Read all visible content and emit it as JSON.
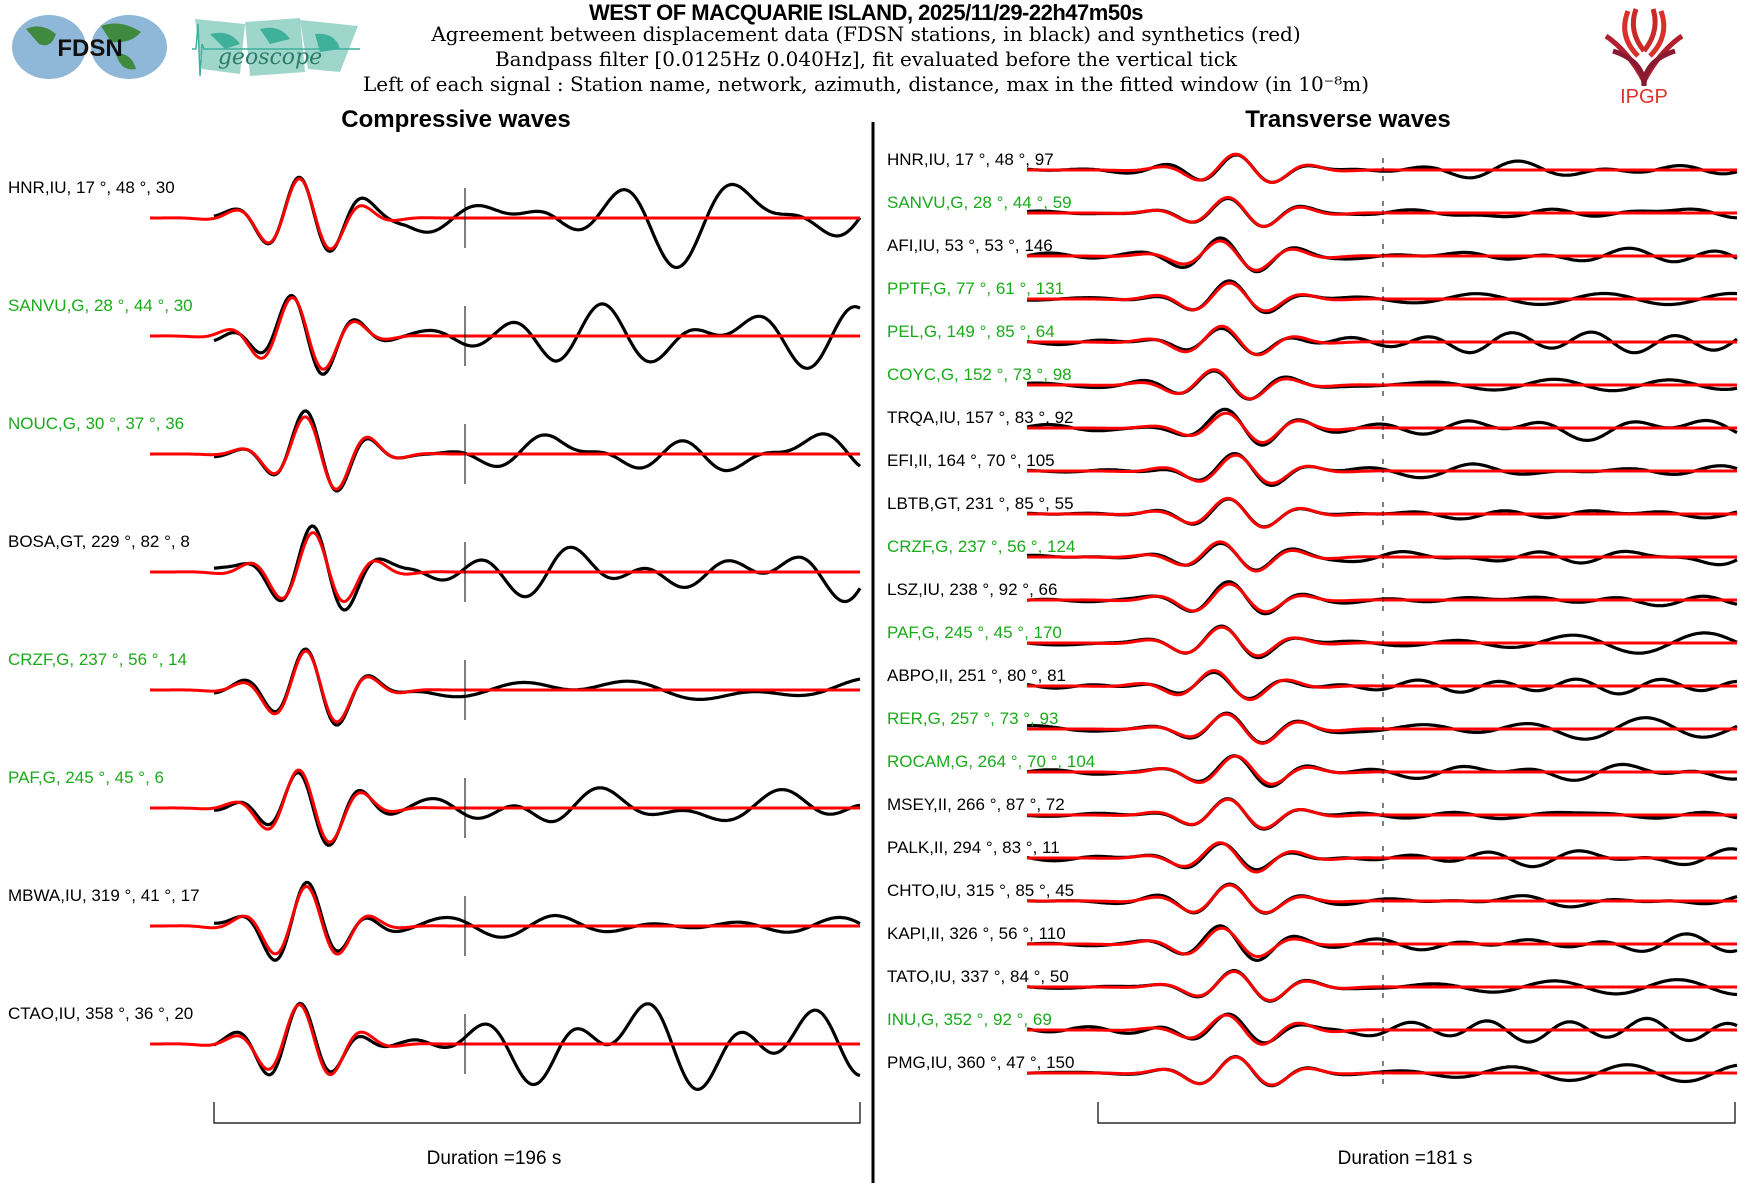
{
  "header": {
    "title": "WEST OF MACQUARIE ISLAND, 2025/11/29-22h47m50s",
    "line1": "Agreement between displacement data (FDSN stations, in black) and synthetics (red)",
    "line2": "Bandpass filter [0.0125Hz 0.040Hz], fit evaluated before the vertical tick",
    "line3": "Left of each signal : Station name, network, azimuth, distance, max in the fitted window (in 10⁻⁸m)",
    "logos": {
      "fdsn": "FDSN",
      "geoscope": "geoscope",
      "ipgp": "IPGP"
    }
  },
  "colors": {
    "data": "#000000",
    "synthetic": "#ff0000",
    "geoscope_label": "#1aaa1a",
    "other_label": "#000000"
  },
  "chart_data": [
    {
      "type": "line",
      "title": "Compressive waves",
      "duration_label": "Duration =196 s",
      "duration_s": 196,
      "series_legend": [
        "data (black)",
        "synthetics (red)"
      ],
      "stations": [
        {
          "label": "HNR,IU, 17 °, 48 °, 30",
          "geoscope": false
        },
        {
          "label": "SANVU,G, 28 °, 44 °, 30",
          "geoscope": true
        },
        {
          "label": "NOUC,G, 30 °, 37 °, 36",
          "geoscope": true
        },
        {
          "label": "BOSA,GT, 229 °, 82 °, 8",
          "geoscope": false
        },
        {
          "label": "CRZF,G, 237 °, 56 °, 14",
          "geoscope": true
        },
        {
          "label": "PAF,G, 245 °, 45 °, 6",
          "geoscope": true
        },
        {
          "label": "MBWA,IU, 319 °, 41 °, 17",
          "geoscope": false
        },
        {
          "label": "CTAO,IU, 358 °, 36 °, 20",
          "geoscope": false
        }
      ]
    },
    {
      "type": "line",
      "title": "Transverse waves",
      "duration_label": "Duration =181 s",
      "duration_s": 181,
      "series_legend": [
        "data (black)",
        "synthetics (red)"
      ],
      "stations": [
        {
          "label": "HNR,IU, 17 °, 48 °, 97",
          "geoscope": false
        },
        {
          "label": "SANVU,G, 28 °, 44 °, 59",
          "geoscope": true
        },
        {
          "label": "AFI,IU, 53 °, 53 °, 146",
          "geoscope": false
        },
        {
          "label": "PPTF,G, 77 °, 61 °, 131",
          "geoscope": true
        },
        {
          "label": "PEL,G, 149 °, 85 °, 64",
          "geoscope": true
        },
        {
          "label": "COYC,G, 152 °, 73 °, 98",
          "geoscope": true
        },
        {
          "label": "TRQA,IU, 157 °, 83 °, 92",
          "geoscope": false
        },
        {
          "label": "EFI,II, 164 °, 70 °, 105",
          "geoscope": false
        },
        {
          "label": "LBTB,GT, 231 °, 85 °, 55",
          "geoscope": false
        },
        {
          "label": "CRZF,G, 237 °, 56 °, 124",
          "geoscope": true
        },
        {
          "label": "LSZ,IU, 238 °, 92 °, 66",
          "geoscope": false
        },
        {
          "label": "PAF,G, 245 °, 45 °, 170",
          "geoscope": true
        },
        {
          "label": "ABPO,II, 251 °, 80 °, 81",
          "geoscope": false
        },
        {
          "label": "RER,G, 257 °, 73 °, 93",
          "geoscope": true
        },
        {
          "label": "ROCAM,G, 264 °, 70 °, 104",
          "geoscope": true
        },
        {
          "label": "MSEY,II, 266 °, 87 °, 72",
          "geoscope": false
        },
        {
          "label": "PALK,II, 294 °, 83 °, 11",
          "geoscope": false
        },
        {
          "label": "CHTO,IU, 315 °, 85 °, 45",
          "geoscope": false
        },
        {
          "label": "KAPI,II, 326 °, 56 °, 110",
          "geoscope": false
        },
        {
          "label": "TATO,IU, 337 °, 84 °, 50",
          "geoscope": false
        },
        {
          "label": "INU,G, 352 °, 92 °, 69",
          "geoscope": true
        },
        {
          "label": "PMG,IU, 360 °, 47 °, 150",
          "geoscope": false
        }
      ]
    }
  ]
}
